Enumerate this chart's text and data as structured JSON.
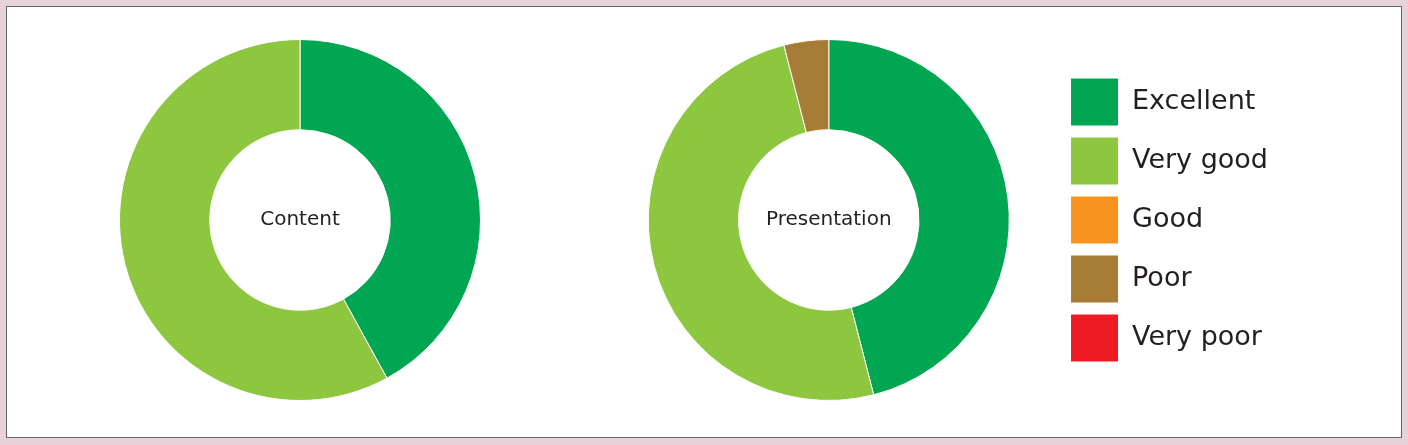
{
  "chart_data": [
    {
      "type": "donut",
      "title": "Content",
      "categories": [
        null,
        null,
        null,
        null,
        null
      ],
      "values": [
        42,
        58,
        0,
        0,
        0
      ],
      "colors": [
        "#00a651",
        "#8dc63f",
        "#f7941d",
        "#a67c37",
        "#ed1c24"
      ],
      "legend": false
    },
    {
      "type": "donut",
      "title": "Presentation",
      "categories": [
        "Excellent",
        "Very good",
        "Good",
        "Poor",
        "Very poor"
      ],
      "values": [
        46,
        50,
        0,
        4,
        0
      ],
      "colors": [
        "#00a651",
        "#8dc63f",
        "#f7941d",
        "#a67c37",
        "#ed1c24"
      ],
      "legend": "right"
    }
  ]
}
